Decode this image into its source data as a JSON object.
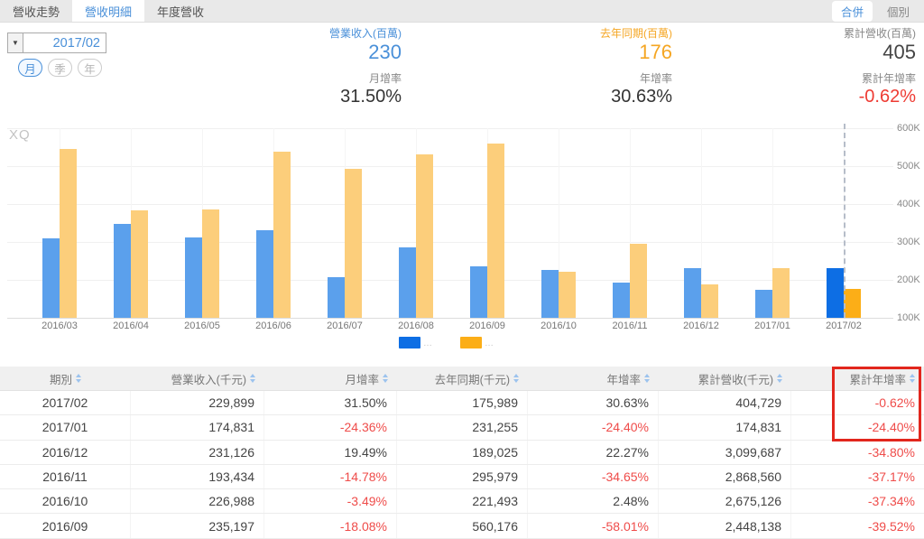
{
  "tabs": {
    "items": [
      {
        "label": "營收走勢",
        "name": "tab-revenue-trend",
        "active": false
      },
      {
        "label": "營收明細",
        "name": "tab-revenue-detail",
        "active": true
      },
      {
        "label": "年度營收",
        "name": "tab-annual-revenue",
        "active": false
      }
    ],
    "right": [
      {
        "label": "合併",
        "name": "consolidated-button",
        "active": true
      },
      {
        "label": "個別",
        "name": "individual-button",
        "active": false
      }
    ]
  },
  "controls": {
    "period_value": "2017/02",
    "granularity": [
      {
        "label": "月",
        "name": "granularity-month",
        "active": true
      },
      {
        "label": "季",
        "name": "granularity-quarter",
        "active": false
      },
      {
        "label": "年",
        "name": "granularity-year",
        "active": false
      }
    ]
  },
  "stats": [
    {
      "name": "stat-revenue",
      "label": "營業收入(百萬)",
      "value": "230",
      "color": "blue",
      "label2": "月增率",
      "value2": "31.50%",
      "value2_color": ""
    },
    {
      "name": "stat-last-year",
      "label": "去年同期(百萬)",
      "value": "176",
      "color": "orange",
      "label2": "年增率",
      "value2": "30.63%",
      "value2_color": ""
    },
    {
      "name": "stat-cumulative",
      "label": "累計營收(百萬)",
      "value": "405",
      "color": "",
      "label2": "累計年增率",
      "value2": "-0.62%",
      "value2_color": "red"
    }
  ],
  "watermark": "XQ",
  "chart_data": {
    "type": "bar",
    "categories": [
      "2016/03",
      "2016/04",
      "2016/05",
      "2016/06",
      "2016/07",
      "2016/08",
      "2016/09",
      "2016/10",
      "2016/11",
      "2016/12",
      "2017/01",
      "2017/02"
    ],
    "series": [
      {
        "name": "營業收入",
        "color": "#5ba0ec",
        "highlight_color": "#0d6ee4",
        "values": [
          310,
          348,
          313,
          330,
          208,
          286,
          235,
          227,
          193,
          231,
          175,
          230
        ]
      },
      {
        "name": "去年同期",
        "color": "#fcce7b",
        "highlight_color": "#fcae17",
        "values": [
          546,
          383,
          385,
          539,
          494,
          532,
          560,
          221,
          296,
          189,
          231,
          176
        ]
      }
    ],
    "unit": "千元(K)",
    "ylim": [
      100,
      600
    ],
    "yticks": [
      600,
      500,
      400,
      300,
      200,
      100
    ],
    "ytick_suffix": "K",
    "highlight_index": 11,
    "legend_labels": [
      "…",
      "…"
    ],
    "grid": true,
    "legend_position": "bottom",
    "title": "",
    "xlabel": "",
    "ylabel": ""
  },
  "table": {
    "headers": [
      {
        "label": "期別",
        "name": "col-period"
      },
      {
        "label": "營業收入(千元)",
        "name": "col-revenue"
      },
      {
        "label": "月增率",
        "name": "col-mom-growth"
      },
      {
        "label": "去年同期(千元)",
        "name": "col-last-year"
      },
      {
        "label": "年增率",
        "name": "col-yoy-growth"
      },
      {
        "label": "累計營收(千元)",
        "name": "col-cumulative-revenue"
      },
      {
        "label": "累計年增率",
        "name": "col-cumulative-yoy"
      }
    ],
    "rows": [
      [
        "2017/02",
        "229,899",
        "31.50%",
        "175,989",
        "30.63%",
        "404,729",
        "-0.62%"
      ],
      [
        "2017/01",
        "174,831",
        "-24.36%",
        "231,255",
        "-24.40%",
        "174,831",
        "-24.40%"
      ],
      [
        "2016/12",
        "231,126",
        "19.49%",
        "189,025",
        "22.27%",
        "3,099,687",
        "-34.80%"
      ],
      [
        "2016/11",
        "193,434",
        "-14.78%",
        "295,979",
        "-34.65%",
        "2,868,560",
        "-37.17%"
      ],
      [
        "2016/10",
        "226,988",
        "-3.49%",
        "221,493",
        "2.48%",
        "2,675,126",
        "-37.34%"
      ],
      [
        "2016/09",
        "235,197",
        "-18.08%",
        "560,176",
        "-58.01%",
        "2,448,138",
        "-39.52%"
      ]
    ],
    "highlight_box_color": "#e2261d"
  }
}
